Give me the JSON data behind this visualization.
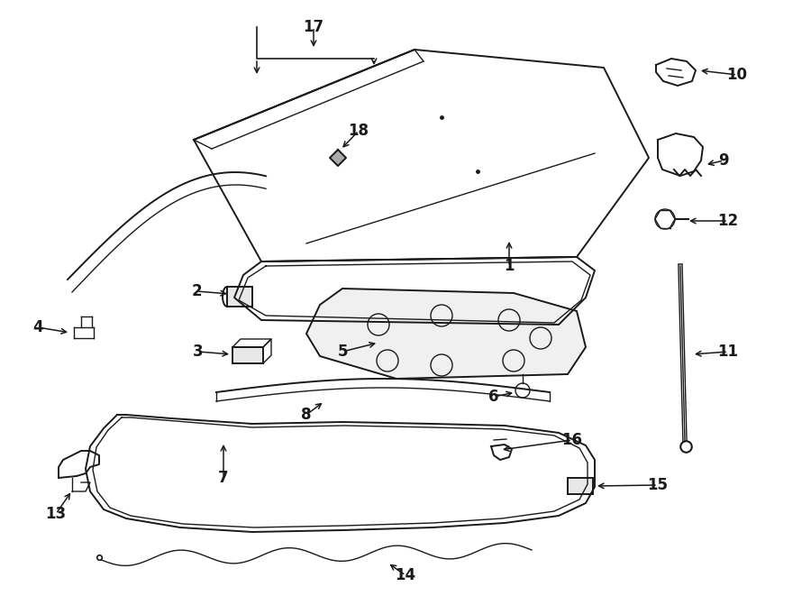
{
  "background_color": "#ffffff",
  "line_color": "#1a1a1a",
  "text_color": "#1a1a1a",
  "fig_width": 9.0,
  "fig_height": 6.61,
  "dpi": 100
}
